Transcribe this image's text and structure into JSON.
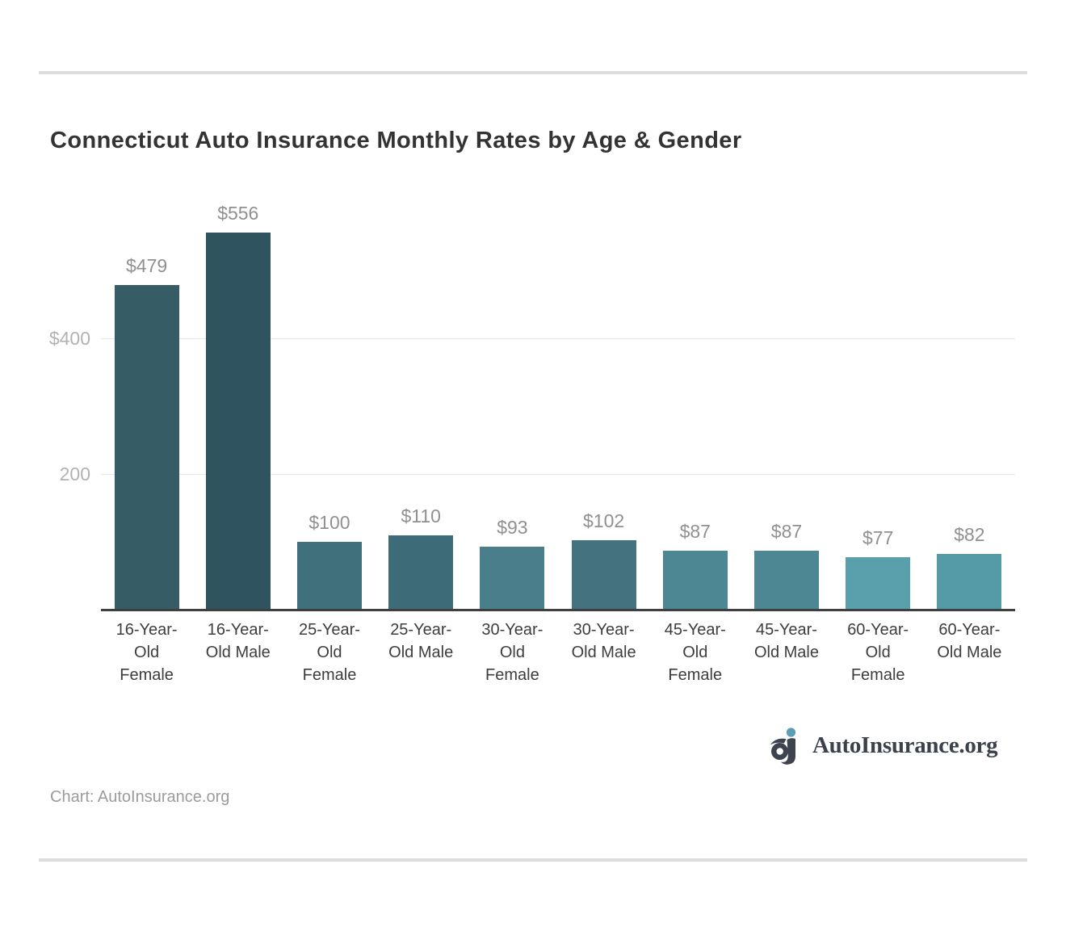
{
  "page": {
    "title": "Connecticut Auto Insurance Monthly Rates by Age & Gender",
    "attribution": "Chart: AutoInsurance.org"
  },
  "brand": {
    "name": "AutoInsurance.org",
    "icon": "aj-monogram-icon",
    "icon_letter_color": "#3d4450",
    "icon_dot_color": "#5b9db3"
  },
  "chart_data": {
    "type": "bar",
    "title": "Connecticut Auto Insurance Monthly Rates by Age & Gender",
    "categories": [
      "16-Year-Old Female",
      "16-Year-Old Male",
      "25-Year-Old Female",
      "25-Year-Old Male",
      "30-Year-Old Female",
      "30-Year-Old Male",
      "45-Year-Old Female",
      "45-Year-Old Male",
      "60-Year-Old Female",
      "60-Year-Old Male"
    ],
    "values": [
      479,
      556,
      100,
      110,
      93,
      102,
      87,
      87,
      77,
      82
    ],
    "value_labels": [
      "$479",
      "$556",
      "$100",
      "$110",
      "$93",
      "$102",
      "$87",
      "$87",
      "$77",
      "$82"
    ],
    "bar_colors": [
      "#365c66",
      "#30545f",
      "#40707c",
      "#3d6b77",
      "#4a7e8a",
      "#44737f",
      "#4d8793",
      "#4d8793",
      "#5a9fac",
      "#549aa7"
    ],
    "xlabel": "",
    "ylabel": "",
    "ylim": [
      0,
      600
    ],
    "y_ticks": [
      {
        "value": 400,
        "label": "$400"
      },
      {
        "value": 200,
        "label": "200"
      }
    ],
    "grid": true,
    "legend_position": "none"
  },
  "colors": {
    "title_text": "#333333",
    "value_label": "#909090",
    "tick_label": "#b2b2b2",
    "category_label": "#3d3d3d",
    "gridline": "#e6e6e6",
    "axis_line": "#3f3f3f",
    "divider": "#dcdcdc",
    "attribution_text": "#9b9b9b",
    "brand_text": "#3b424c",
    "background": "#ffffff"
  }
}
